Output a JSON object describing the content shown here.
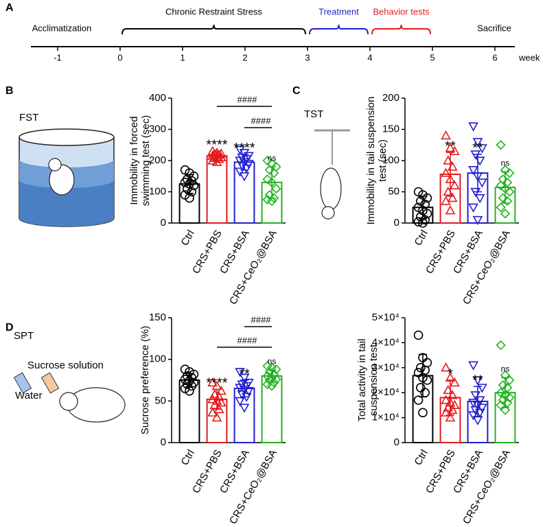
{
  "panel_labels": [
    "A",
    "B",
    "C",
    "D"
  ],
  "illustration_labels": {
    "fst": "FST",
    "tst": "TST",
    "spt": "SPT",
    "sucrose": "Sucrose solution",
    "water": "Water"
  },
  "timeline": {
    "ticks": [
      -1,
      0,
      1,
      2,
      3,
      4,
      5,
      6
    ],
    "unit": "week",
    "acclimatization": "Acclimatization",
    "sacrifice": "Sacrifice",
    "phases": [
      {
        "label": "Chronic Restraint Stress",
        "start": 0,
        "end": 3,
        "color": "#000000"
      },
      {
        "label": "Treatment",
        "start": 3,
        "end": 4,
        "color": "#1f1fd1"
      },
      {
        "label": "Behavior tests",
        "start": 4,
        "end": 5,
        "color": "#e41a1c"
      }
    ]
  },
  "chart_data": [
    {
      "type": "bar",
      "ylabel": [
        "Immobility in forced",
        "swimming test (sec)"
      ],
      "categories": [
        "Ctrl",
        "CRS+PBS",
        "CRS+BSA",
        "CRS+CeO₂@BSA"
      ],
      "colors": [
        "#000000",
        "#e41a1c",
        "#1f1fd1",
        "#22b222"
      ],
      "markers": [
        "circle",
        "triangle-up",
        "triangle-down",
        "diamond"
      ],
      "values": [
        125,
        215,
        195,
        130
      ],
      "errors": [
        30,
        15,
        25,
        50
      ],
      "points": [
        [
          170,
          160,
          150,
          140,
          135,
          130,
          125,
          120,
          110,
          100,
          90,
          80
        ],
        [
          230,
          225,
          222,
          220,
          218,
          215,
          212,
          210,
          208,
          205,
          200,
          195
        ],
        [
          235,
          225,
          215,
          210,
          205,
          200,
          195,
          190,
          185,
          175,
          165,
          150
        ],
        [
          200,
          190,
          180,
          170,
          160,
          140,
          130,
          110,
          90,
          80,
          75,
          70
        ]
      ],
      "sig_labels": [
        null,
        "****",
        "****",
        "ns"
      ],
      "brackets": [
        "####",
        "####"
      ],
      "ylim": [
        0,
        400
      ],
      "yticks": [
        0,
        100,
        200,
        300,
        400
      ]
    },
    {
      "type": "bar",
      "ylabel": [
        "Immobility in tail suspension",
        "test (sec)"
      ],
      "categories": [
        "Ctrl",
        "CRS+PBS",
        "CRS+BSA",
        "CRS+CeO₂@BSA"
      ],
      "colors": [
        "#000000",
        "#e41a1c",
        "#1f1fd1",
        "#22b222"
      ],
      "markers": [
        "circle",
        "triangle-up",
        "triangle-down",
        "diamond"
      ],
      "values": [
        25,
        78,
        80,
        57
      ],
      "errors": [
        18,
        35,
        30,
        25
      ],
      "points": [
        [
          50,
          45,
          40,
          35,
          30,
          25,
          20,
          15,
          10,
          5,
          2,
          0
        ],
        [
          140,
          120,
          115,
          100,
          90,
          80,
          70,
          60,
          50,
          40,
          35,
          20
        ],
        [
          155,
          130,
          120,
          110,
          100,
          85,
          75,
          65,
          50,
          40,
          25,
          5
        ],
        [
          125,
          85,
          80,
          70,
          65,
          60,
          55,
          50,
          40,
          35,
          25,
          15
        ]
      ],
      "sig_labels": [
        null,
        "**",
        "**",
        "ns"
      ],
      "brackets": [],
      "ylim": [
        0,
        200
      ],
      "yticks": [
        0,
        50,
        100,
        150,
        200
      ]
    },
    {
      "type": "bar",
      "ylabel": [
        "Sucrose preference (%)"
      ],
      "categories": [
        "Ctrl",
        "CRS+PBS",
        "CRS+BSA",
        "CRS+CeO₂@BSA"
      ],
      "colors": [
        "#000000",
        "#e41a1c",
        "#1f1fd1",
        "#22b222"
      ],
      "markers": [
        "circle",
        "triangle-up",
        "triangle-down",
        "diamond"
      ],
      "values": [
        75,
        52,
        65,
        80
      ],
      "errors": [
        8,
        12,
        10,
        7
      ],
      "points": [
        [
          88,
          85,
          82,
          80,
          78,
          76,
          74,
          72,
          70,
          68,
          65,
          62
        ],
        [
          72,
          68,
          62,
          58,
          55,
          52,
          50,
          48,
          45,
          40,
          36,
          30
        ],
        [
          85,
          78,
          72,
          70,
          68,
          66,
          64,
          62,
          58,
          55,
          50,
          42
        ],
        [
          92,
          90,
          88,
          85,
          82,
          80,
          78,
          76,
          75,
          72,
          70,
          68
        ]
      ],
      "sig_labels": [
        null,
        "****",
        "**",
        "ns"
      ],
      "brackets": [
        "####",
        "####"
      ],
      "ylim": [
        0,
        150
      ],
      "yticks": [
        0,
        50,
        100,
        150
      ]
    },
    {
      "type": "bar",
      "ylabel": [
        "Total activity in tail",
        "suspension test"
      ],
      "categories": [
        "Ctrl",
        "CRS+PBS",
        "CRS+BSA",
        "CRS+CeO₂@BSA"
      ],
      "colors": [
        "#000000",
        "#e41a1c",
        "#1f1fd1",
        "#22b222"
      ],
      "markers": [
        "circle",
        "triangle-up",
        "triangle-down",
        "diamond"
      ],
      "values": [
        26800,
        18000,
        16500,
        20000
      ],
      "errors": [
        8500,
        7000,
        6000,
        6000
      ],
      "points": [
        [
          43000,
          34000,
          32000,
          30000,
          29000,
          28000,
          26000,
          25000,
          22000,
          20000,
          17000,
          12000
        ],
        [
          30000,
          26000,
          24000,
          21000,
          19000,
          17000,
          16000,
          15000,
          14000,
          13000,
          12000,
          10000
        ],
        [
          31000,
          25000,
          22000,
          19000,
          17000,
          16000,
          15000,
          14000,
          13000,
          12000,
          11000,
          9000
        ],
        [
          39000,
          27000,
          25000,
          23000,
          22000,
          20000,
          19000,
          18000,
          17000,
          16000,
          15000,
          13000
        ]
      ],
      "sig_labels": [
        null,
        "*",
        "**",
        "ns"
      ],
      "brackets": [],
      "ylim": [
        0,
        50000
      ],
      "yticks": [
        0,
        {
          "value": 10000,
          "label": "1×10⁴"
        },
        {
          "value": 20000,
          "label": "2×10⁴"
        },
        {
          "value": 30000,
          "label": "3×10⁴"
        },
        {
          "value": 40000,
          "label": "4×10⁴"
        },
        {
          "value": 50000,
          "label": "5×10⁴"
        }
      ]
    }
  ]
}
